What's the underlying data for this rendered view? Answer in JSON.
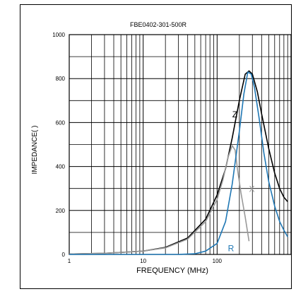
{
  "chart_data": {
    "type": "line",
    "title": "FBE0402-301-500R",
    "xlabel": "FREQUENCY (MHz)",
    "ylabel": "IMPEDANCE( )",
    "x_scale": "log",
    "xlim": [
      1,
      1000
    ],
    "ylim": [
      0,
      1000
    ],
    "grid": true,
    "x_ticks": [
      {
        "value": 1,
        "label": "1"
      },
      {
        "value": 10,
        "label": "10"
      },
      {
        "value": 100,
        "label": "100"
      }
    ],
    "y_ticks": [
      {
        "value": 0,
        "label": "0"
      },
      {
        "value": 200,
        "label": "200"
      },
      {
        "value": 400,
        "label": "400"
      },
      {
        "value": 600,
        "label": "600"
      },
      {
        "value": 800,
        "label": "800"
      },
      {
        "value": 1000,
        "label": "1000"
      }
    ],
    "series": [
      {
        "name": "Z",
        "color": "#000000",
        "label_at": [
          160,
          640
        ],
        "points": [
          [
            1,
            2
          ],
          [
            3,
            5
          ],
          [
            10,
            15
          ],
          [
            20,
            32
          ],
          [
            40,
            75
          ],
          [
            70,
            160
          ],
          [
            100,
            270
          ],
          [
            130,
            390
          ],
          [
            160,
            530
          ],
          [
            200,
            700
          ],
          [
            240,
            820
          ],
          [
            270,
            835
          ],
          [
            300,
            820
          ],
          [
            350,
            740
          ],
          [
            400,
            640
          ],
          [
            500,
            480
          ],
          [
            600,
            370
          ],
          [
            700,
            300
          ],
          [
            800,
            260
          ],
          [
            900,
            240
          ]
        ]
      },
      {
        "name": "X",
        "color": "#999999",
        "label_at": [
          270,
          300
        ],
        "points": [
          [
            1,
            2
          ],
          [
            3,
            5
          ],
          [
            10,
            15
          ],
          [
            20,
            30
          ],
          [
            40,
            70
          ],
          [
            70,
            150
          ],
          [
            100,
            250
          ],
          [
            120,
            340
          ],
          [
            140,
            440
          ],
          [
            160,
            495
          ],
          [
            175,
            475
          ],
          [
            190,
            380
          ],
          [
            210,
            280
          ],
          [
            240,
            170
          ],
          [
            270,
            60
          ]
        ]
      },
      {
        "name": "R",
        "color": "#1f77b4",
        "label_at": [
          140,
          30
        ],
        "points": [
          [
            1,
            0
          ],
          [
            30,
            0
          ],
          [
            50,
            3
          ],
          [
            70,
            15
          ],
          [
            100,
            50
          ],
          [
            130,
            150
          ],
          [
            160,
            320
          ],
          [
            200,
            560
          ],
          [
            230,
            730
          ],
          [
            260,
            830
          ],
          [
            290,
            820
          ],
          [
            320,
            760
          ],
          [
            370,
            620
          ],
          [
            430,
            460
          ],
          [
            500,
            330
          ],
          [
            600,
            220
          ],
          [
            700,
            150
          ],
          [
            800,
            110
          ],
          [
            900,
            80
          ]
        ]
      }
    ]
  }
}
